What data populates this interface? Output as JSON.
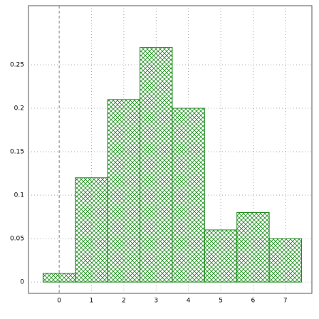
{
  "chart_data": {
    "type": "histogram",
    "bins": [
      -0.5,
      0.5,
      1.5,
      2.5,
      3.5,
      4.5,
      5.5,
      6.5,
      7.5
    ],
    "values": [
      0.01,
      0.12,
      0.21,
      0.27,
      0.2,
      0.06,
      0.08,
      0.05
    ],
    "color": "#1a8a1a",
    "xlim": [
      -0.95,
      7.82
    ],
    "xticks": [
      0,
      1,
      2,
      3,
      4,
      5,
      6,
      7
    ],
    "ylim": [
      -0.013,
      0.318
    ],
    "yticks": [
      0,
      0.05,
      0.1,
      0.15,
      0.2,
      0.25
    ],
    "grid": true
  }
}
